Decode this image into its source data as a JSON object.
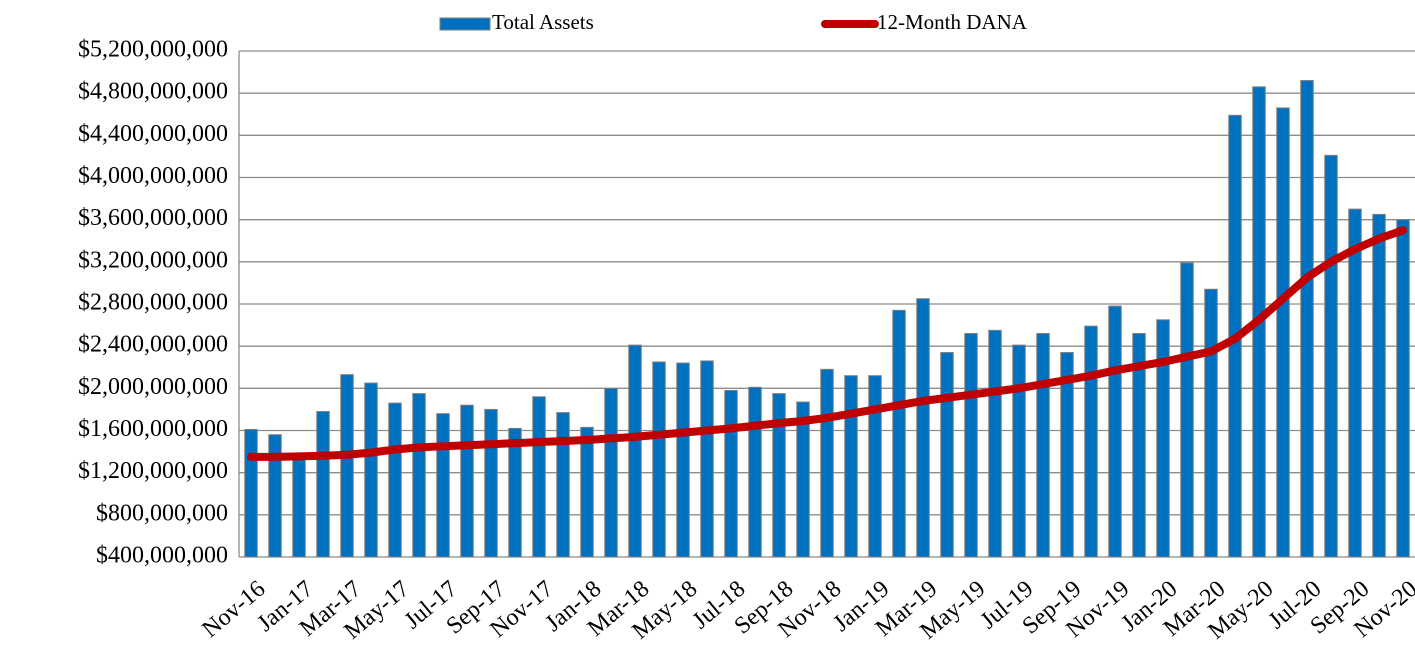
{
  "chart_data": {
    "type": "bar",
    "categories": [
      "Nov-16",
      null,
      "Jan-17",
      null,
      "Mar-17",
      null,
      "May-17",
      null,
      "Jul-17",
      null,
      "Sep-17",
      null,
      "Nov-17",
      null,
      "Jan-18",
      null,
      "Mar-18",
      null,
      "May-18",
      null,
      "Jul-18",
      null,
      "Sep-18",
      null,
      "Nov-18",
      null,
      "Jan-19",
      null,
      "Mar-19",
      null,
      "May-19",
      null,
      "Jul-19",
      null,
      "Sep-19",
      null,
      "Nov-19",
      null,
      "Jan-20",
      null,
      "Mar-20",
      null,
      "May-20",
      null,
      "Jul-20",
      null,
      "Sep-20",
      null,
      "Nov-20"
    ],
    "series": [
      {
        "name": "Total Assets",
        "type": "bar",
        "color": "#0070c0",
        "values": [
          1610000000,
          1560000000,
          1350000000,
          1780000000,
          2130000000,
          2050000000,
          1860000000,
          1950000000,
          1760000000,
          1840000000,
          1800000000,
          1620000000,
          1920000000,
          1770000000,
          1630000000,
          2000000000,
          2410000000,
          2250000000,
          2240000000,
          2260000000,
          1980000000,
          2010000000,
          1950000000,
          1870000000,
          2180000000,
          2120000000,
          2120000000,
          2740000000,
          2850000000,
          2340000000,
          2520000000,
          2550000000,
          2410000000,
          2520000000,
          2340000000,
          2590000000,
          2780000000,
          2520000000,
          2650000000,
          3190000000,
          2940000000,
          4590000000,
          4860000000,
          4660000000,
          4920000000,
          4210000000,
          3700000000,
          3650000000,
          3600000000
        ]
      },
      {
        "name": "12-Month DANA",
        "type": "line",
        "color": "#c00000",
        "values": [
          1350000000,
          1350000000,
          1355000000,
          1360000000,
          1370000000,
          1390000000,
          1420000000,
          1440000000,
          1450000000,
          1460000000,
          1470000000,
          1480000000,
          1490000000,
          1500000000,
          1510000000,
          1525000000,
          1540000000,
          1560000000,
          1580000000,
          1600000000,
          1620000000,
          1645000000,
          1670000000,
          1690000000,
          1720000000,
          1760000000,
          1800000000,
          1840000000,
          1880000000,
          1910000000,
          1940000000,
          1970000000,
          2000000000,
          2040000000,
          2080000000,
          2120000000,
          2170000000,
          2210000000,
          2250000000,
          2300000000,
          2350000000,
          2470000000,
          2650000000,
          2850000000,
          3050000000,
          3200000000,
          3320000000,
          3420000000,
          3500000000
        ]
      }
    ],
    "ylim": [
      400000000,
      5200000000
    ],
    "yticks": [
      {
        "value": 400000000,
        "label": "$400,000,000"
      },
      {
        "value": 800000000,
        "label": "$800,000,000"
      },
      {
        "value": 1200000000,
        "label": "$1,200,000,000"
      },
      {
        "value": 1600000000,
        "label": "$1,600,000,000"
      },
      {
        "value": 2000000000,
        "label": "$2,000,000,000"
      },
      {
        "value": 2400000000,
        "label": "$2,400,000,000"
      },
      {
        "value": 2800000000,
        "label": "$2,800,000,000"
      },
      {
        "value": 3200000000,
        "label": "$3,200,000,000"
      },
      {
        "value": 3600000000,
        "label": "$3,600,000,000"
      },
      {
        "value": 4000000000,
        "label": "$4,000,000,000"
      },
      {
        "value": 4400000000,
        "label": "$4,400,000,000"
      },
      {
        "value": 4800000000,
        "label": "$4,800,000,000"
      },
      {
        "value": 5200000000,
        "label": "$5,200,000,000"
      }
    ],
    "grid": true,
    "legend": "top"
  }
}
